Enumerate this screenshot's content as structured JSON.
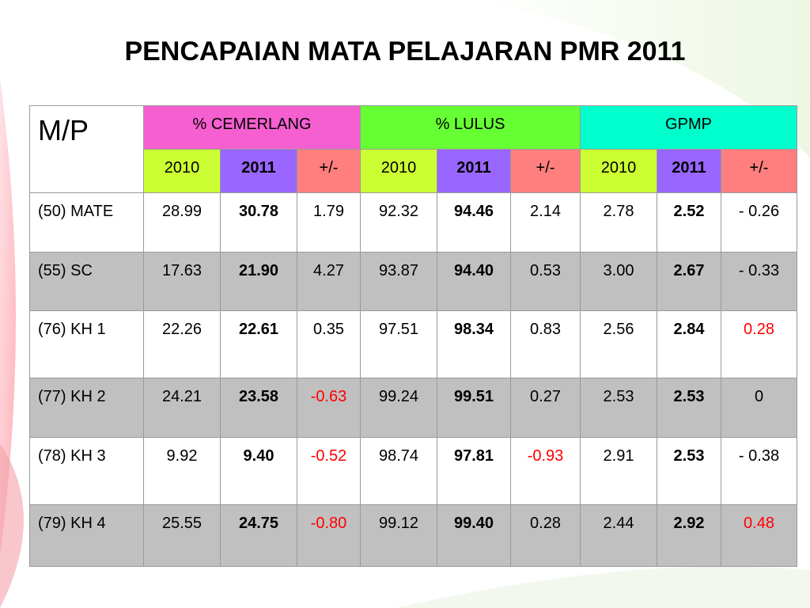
{
  "title": "PENCAPAIAN MATA PELAJARAN PMR 2011",
  "table": {
    "corner": "M/P",
    "groups": [
      "% CEMERLANG",
      "% LULUS",
      "GPMP"
    ],
    "subheaders": [
      "2010",
      "2011",
      "+/-"
    ],
    "rows": [
      [
        "(50) MATE",
        "28.99",
        "30.78",
        "1.79",
        "92.32",
        "94.46",
        "2.14",
        "2.78",
        "2.52",
        "- 0.26"
      ],
      [
        "(55) SC",
        "17.63",
        "21.90",
        "4.27",
        "93.87",
        "94.40",
        "0.53",
        "3.00",
        "2.67",
        "- 0.33"
      ],
      [
        "(76) KH 1",
        "22.26",
        "22.61",
        "0.35",
        "97.51",
        "98.34",
        "0.83",
        "2.56",
        "2.84",
        "0.28"
      ],
      [
        "(77) KH 2",
        "24.21",
        "23.58",
        "-0.63",
        "99.24",
        "99.51",
        "0.27",
        "2.53",
        "2.53",
        "0"
      ],
      [
        "(78) KH 3",
        "9.92",
        "9.40",
        "-0.52",
        "98.74",
        "97.81",
        "-0.93",
        "2.91",
        "2.53",
        "- 0.38"
      ],
      [
        "(79) KH 4",
        "25.55",
        "24.75",
        "-0.80",
        "99.12",
        "99.40",
        "0.28",
        "2.44",
        "2.92",
        "0.48"
      ]
    ],
    "decline_color": "#ff0000"
  }
}
